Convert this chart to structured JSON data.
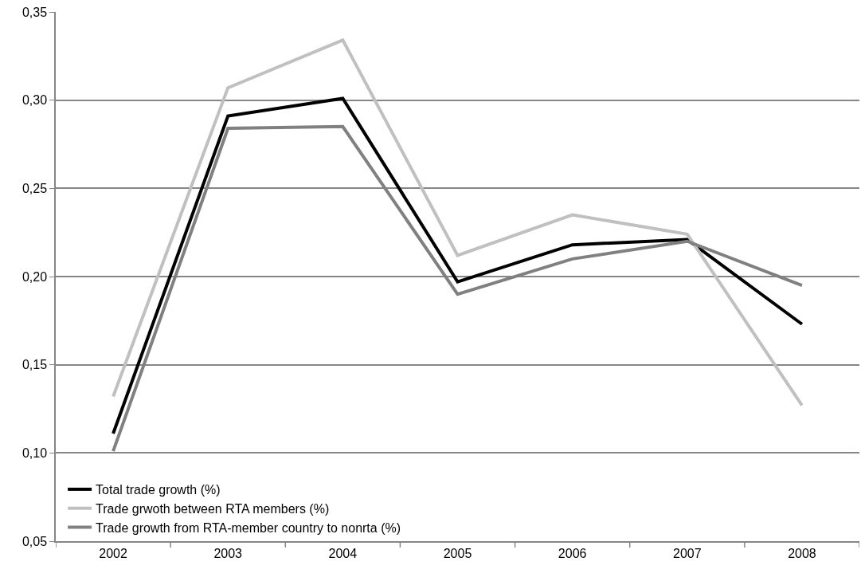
{
  "chart_data": {
    "type": "line",
    "categories": [
      "2002",
      "2003",
      "2004",
      "2005",
      "2006",
      "2007",
      "2008"
    ],
    "series": [
      {
        "name": "Total trade growth (%)",
        "color": "#000000",
        "values": [
          0.111,
          0.291,
          0.301,
          0.197,
          0.218,
          0.221,
          0.173
        ]
      },
      {
        "name": "Trade grwoth between RTA members (%)",
        "color": "#c0c0c0",
        "values": [
          0.132,
          0.307,
          0.334,
          0.212,
          0.235,
          0.224,
          0.127
        ]
      },
      {
        "name": "Trade growth from RTA-member country to nonrta (%)",
        "color": "#808080",
        "values": [
          0.101,
          0.284,
          0.285,
          0.19,
          0.21,
          0.22,
          0.195
        ]
      }
    ],
    "ylim": [
      0.05,
      0.35
    ],
    "yticks": [
      {
        "value": 0.05,
        "label": "0,05"
      },
      {
        "value": 0.1,
        "label": "0,10"
      },
      {
        "value": 0.15,
        "label": "0,15"
      },
      {
        "value": 0.2,
        "label": "0,20"
      },
      {
        "value": 0.25,
        "label": "0,25"
      },
      {
        "value": 0.3,
        "label": "0,30"
      },
      {
        "value": 0.35,
        "label": "0,35"
      }
    ],
    "grid": "y",
    "legend": "bottom left",
    "marker": "none",
    "line_style": "solid"
  }
}
